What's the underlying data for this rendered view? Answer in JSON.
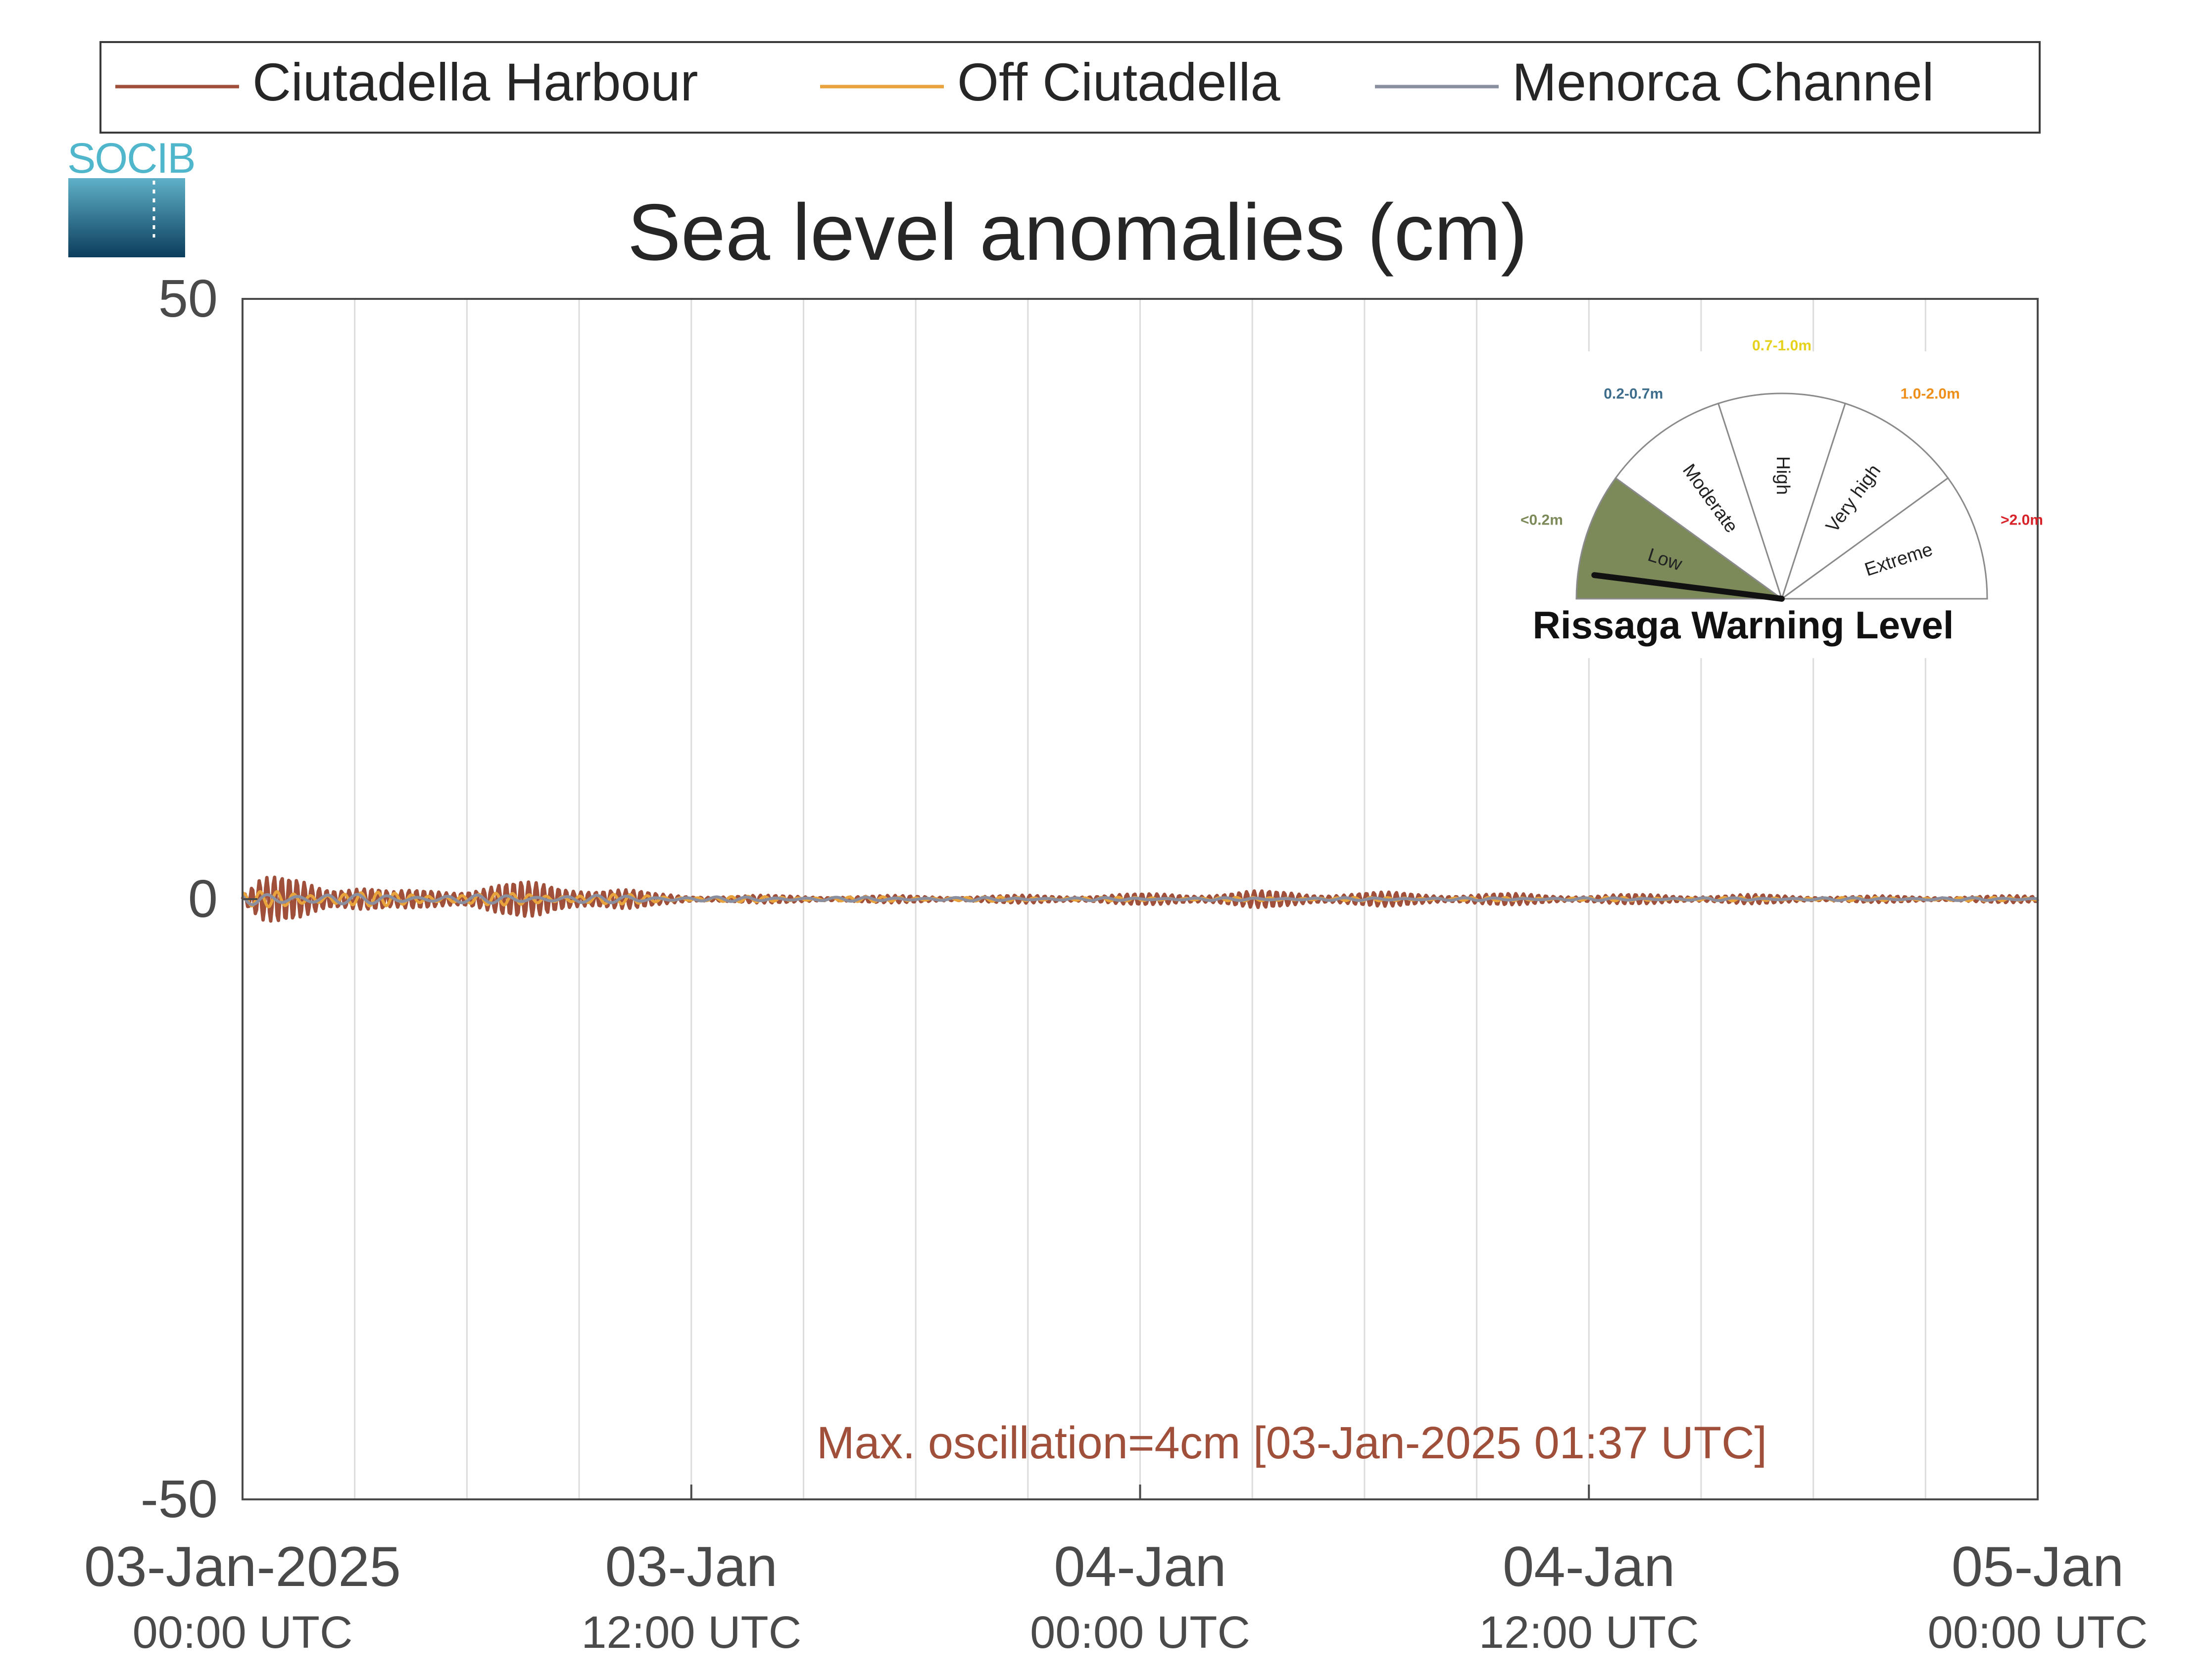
{
  "chart_data": {
    "type": "line",
    "title": "Sea level anomalies (cm)",
    "ylim": [
      -50,
      50
    ],
    "yticks": [
      50,
      0,
      -50
    ],
    "ytick_labels": [
      "50",
      "0",
      "-50"
    ],
    "xlim_hours": [
      0,
      48
    ],
    "x_gridline_hours": [
      3,
      6,
      9,
      12,
      15,
      18,
      21,
      24,
      27,
      30,
      33,
      36,
      39,
      42,
      45
    ],
    "xticks": [
      {
        "hour": 0,
        "date": "03-Jan-2025",
        "time": "00:00 UTC"
      },
      {
        "hour": 12,
        "date": "03-Jan",
        "time": "12:00 UTC"
      },
      {
        "hour": 24,
        "date": "04-Jan",
        "time": "00:00 UTC"
      },
      {
        "hour": 36,
        "date": "04-Jan",
        "time": "12:00 UTC"
      },
      {
        "hour": 48,
        "date": "05-Jan",
        "time": "00:00 UTC"
      }
    ],
    "grid": "vertical",
    "legend_position": "top",
    "series": [
      {
        "name": "Ciutadella Harbour",
        "color": "#a0503a",
        "envelope": [
          [
            0,
            0.5
          ],
          [
            0.5,
            1.8
          ],
          [
            1.62,
            2.0
          ],
          [
            3,
            1.5
          ],
          [
            4,
            0.6
          ],
          [
            5,
            1.0
          ],
          [
            6,
            1.3
          ],
          [
            7,
            1.4
          ],
          [
            8,
            1.5
          ],
          [
            9,
            1.5
          ],
          [
            10,
            1.0
          ],
          [
            11,
            0.5
          ],
          [
            12,
            0.35
          ],
          [
            15,
            0.3
          ],
          [
            20,
            0.3
          ],
          [
            24,
            0.45
          ],
          [
            27,
            0.7
          ],
          [
            30,
            0.6
          ],
          [
            33,
            0.5
          ],
          [
            36,
            0.4
          ],
          [
            40,
            0.4
          ],
          [
            42,
            0.3
          ],
          [
            45,
            0.25
          ],
          [
            48,
            0.3
          ]
        ]
      },
      {
        "name": "Off Ciutadella",
        "color": "#e8a33d",
        "envelope": [
          [
            0,
            0.5
          ],
          [
            1,
            0.8
          ],
          [
            3,
            0.6
          ],
          [
            6,
            0.5
          ],
          [
            9,
            0.5
          ],
          [
            12,
            0.25
          ],
          [
            24,
            0.15
          ],
          [
            48,
            0.15
          ]
        ]
      },
      {
        "name": "Menorca Channel",
        "color": "#8a8fa0",
        "envelope": [
          [
            0,
            0.5
          ],
          [
            1,
            0.6
          ],
          [
            3,
            0.4
          ],
          [
            6,
            0.35
          ],
          [
            9,
            0.35
          ],
          [
            12,
            0.2
          ],
          [
            24,
            0.12
          ],
          [
            48,
            0.12
          ]
        ]
      }
    ],
    "annotation": {
      "text": "Max. oscillation=4cm [03-Jan-2025 01:37 UTC]",
      "color": "#a0503a"
    }
  },
  "logo": {
    "text": "SOCIB"
  },
  "gauge": {
    "title": "Rissaga Warning Level",
    "level_value": "Low",
    "needle_fraction": 0.04,
    "sectors": [
      {
        "label": "Low",
        "range": "<0.2m",
        "color": "#7c8a5a",
        "active": true
      },
      {
        "label": "Moderate",
        "range": "0.2-0.7m",
        "color": "#3e6d8c",
        "active": false
      },
      {
        "label": "High",
        "range": "0.7-1.0m",
        "color": "#e6d21c",
        "active": false
      },
      {
        "label": "Very high",
        "range": "1.0-2.0m",
        "color": "#ee8f1a",
        "active": false
      },
      {
        "label": "Extreme",
        "range": ">2.0m",
        "color": "#d8232a",
        "active": false
      }
    ]
  }
}
